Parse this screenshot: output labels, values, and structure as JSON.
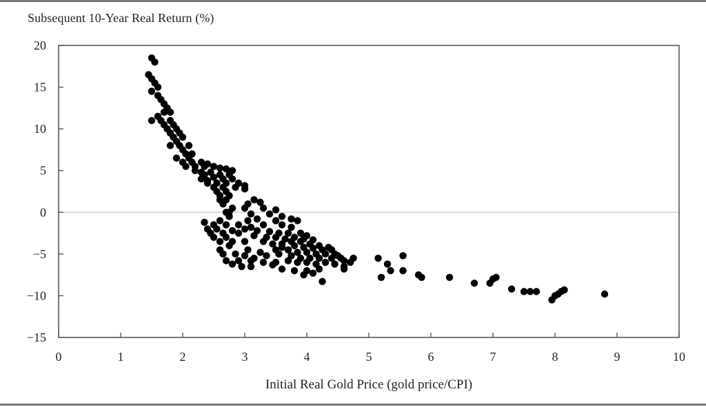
{
  "chart_data": {
    "type": "scatter",
    "title": "",
    "ylabel": "Subsequent 10-Year Real Return (%)",
    "xlabel": "Initial Real Gold Price (gold price/CPI)",
    "xlim": [
      0,
      10
    ],
    "ylim": [
      -15,
      20
    ],
    "xticks": [
      0,
      1,
      2,
      3,
      4,
      5,
      6,
      7,
      8,
      9,
      10
    ],
    "yticks": [
      20,
      15,
      10,
      5,
      0,
      -5,
      -10,
      -15
    ],
    "ytick_labels": [
      "20",
      "15",
      "10",
      "5",
      "0",
      "−5",
      "−10",
      "−15"
    ],
    "reference_line_y": 0,
    "marker_color": "#000000",
    "points": [
      [
        1.5,
        18.5
      ],
      [
        1.55,
        18.0
      ],
      [
        1.45,
        16.5
      ],
      [
        1.5,
        16.0
      ],
      [
        1.55,
        15.5
      ],
      [
        1.6,
        15.0
      ],
      [
        1.5,
        14.5
      ],
      [
        1.6,
        14.0
      ],
      [
        1.65,
        13.5
      ],
      [
        1.7,
        13.0
      ],
      [
        1.75,
        12.5
      ],
      [
        1.8,
        12.0
      ],
      [
        1.7,
        12.0
      ],
      [
        1.6,
        11.5
      ],
      [
        1.5,
        11.0
      ],
      [
        1.65,
        11.0
      ],
      [
        1.8,
        11.0
      ],
      [
        1.7,
        10.5
      ],
      [
        1.85,
        10.5
      ],
      [
        1.75,
        10.0
      ],
      [
        1.9,
        10.0
      ],
      [
        1.8,
        9.5
      ],
      [
        1.95,
        9.5
      ],
      [
        1.85,
        9.0
      ],
      [
        2.0,
        9.0
      ],
      [
        1.9,
        8.5
      ],
      [
        1.8,
        8.0
      ],
      [
        1.95,
        8.0
      ],
      [
        2.1,
        8.0
      ],
      [
        2.0,
        7.5
      ],
      [
        2.15,
        7.0
      ],
      [
        2.05,
        7.0
      ],
      [
        1.9,
        6.5
      ],
      [
        2.1,
        6.5
      ],
      [
        2.0,
        6.0
      ],
      [
        2.15,
        6.0
      ],
      [
        2.3,
        6.0
      ],
      [
        2.2,
        5.5
      ],
      [
        2.05,
        5.5
      ],
      [
        2.35,
        5.5
      ],
      [
        2.5,
        5.5
      ],
      [
        2.4,
        5.8
      ],
      [
        2.6,
        5.3
      ],
      [
        2.7,
        5.2
      ],
      [
        2.8,
        5.0
      ],
      [
        2.2,
        5.0
      ],
      [
        2.3,
        4.8
      ],
      [
        2.45,
        4.8
      ],
      [
        2.6,
        4.5
      ],
      [
        2.75,
        4.5
      ],
      [
        2.35,
        4.5
      ],
      [
        2.5,
        4.2
      ],
      [
        2.65,
        4.0
      ],
      [
        2.3,
        4.0
      ],
      [
        2.8,
        4.0
      ],
      [
        2.4,
        3.8
      ],
      [
        2.55,
        3.5
      ],
      [
        2.7,
        3.5
      ],
      [
        2.9,
        3.5
      ],
      [
        3.0,
        3.2
      ],
      [
        2.4,
        3.5
      ],
      [
        2.5,
        3.0
      ],
      [
        2.65,
        3.0
      ],
      [
        2.85,
        3.0
      ],
      [
        3.0,
        2.8
      ],
      [
        2.55,
        2.5
      ],
      [
        2.7,
        2.5
      ],
      [
        2.6,
        2.0
      ],
      [
        2.75,
        2.0
      ],
      [
        2.6,
        1.5
      ],
      [
        2.7,
        1.5
      ],
      [
        3.15,
        1.5
      ],
      [
        3.25,
        1.2
      ],
      [
        3.05,
        1.0
      ],
      [
        2.65,
        1.0
      ],
      [
        2.8,
        0.5
      ],
      [
        3.0,
        0.5
      ],
      [
        3.3,
        0.5
      ],
      [
        3.5,
        0.3
      ],
      [
        2.7,
        0.0
      ],
      [
        2.75,
        0.0
      ],
      [
        3.1,
        -0.2
      ],
      [
        3.4,
        -0.2
      ],
      [
        3.6,
        -0.5
      ],
      [
        3.75,
        -0.8
      ],
      [
        3.85,
        -1.0
      ],
      [
        2.75,
        -0.5
      ],
      [
        3.2,
        -0.8
      ],
      [
        3.05,
        -1.0
      ],
      [
        3.5,
        -1.0
      ],
      [
        2.6,
        -1.0
      ],
      [
        2.35,
        -1.2
      ],
      [
        2.5,
        -1.5
      ],
      [
        2.7,
        -1.5
      ],
      [
        2.9,
        -1.5
      ],
      [
        3.1,
        -1.8
      ],
      [
        3.3,
        -1.5
      ],
      [
        3.6,
        -1.5
      ],
      [
        3.75,
        -1.8
      ],
      [
        2.4,
        -2.0
      ],
      [
        2.55,
        -2.0
      ],
      [
        2.8,
        -2.2
      ],
      [
        3.0,
        -2.0
      ],
      [
        3.2,
        -2.2
      ],
      [
        3.4,
        -2.3
      ],
      [
        3.55,
        -2.5
      ],
      [
        3.7,
        -2.5
      ],
      [
        3.9,
        -2.5
      ],
      [
        4.0,
        -2.8
      ],
      [
        2.45,
        -2.5
      ],
      [
        2.65,
        -2.5
      ],
      [
        2.9,
        -2.5
      ],
      [
        3.15,
        -2.8
      ],
      [
        3.35,
        -3.0
      ],
      [
        3.5,
        -3.0
      ],
      [
        3.65,
        -3.2
      ],
      [
        3.8,
        -3.0
      ],
      [
        3.95,
        -3.2
      ],
      [
        4.1,
        -3.3
      ],
      [
        2.5,
        -3.0
      ],
      [
        2.7,
        -3.0
      ],
      [
        2.6,
        -3.5
      ],
      [
        2.8,
        -3.5
      ],
      [
        3.0,
        -3.5
      ],
      [
        3.3,
        -3.5
      ],
      [
        3.45,
        -3.8
      ],
      [
        3.6,
        -3.8
      ],
      [
        3.75,
        -3.5
      ],
      [
        3.9,
        -3.5
      ],
      [
        4.05,
        -3.8
      ],
      [
        4.2,
        -4.0
      ],
      [
        4.35,
        -4.2
      ],
      [
        2.75,
        -4.0
      ],
      [
        3.6,
        -4.2
      ],
      [
        3.8,
        -4.0
      ],
      [
        3.95,
        -4.2
      ],
      [
        4.1,
        -4.3
      ],
      [
        4.25,
        -4.5
      ],
      [
        4.4,
        -4.5
      ],
      [
        2.6,
        -4.5
      ],
      [
        3.05,
        -4.5
      ],
      [
        3.25,
        -4.8
      ],
      [
        3.5,
        -4.5
      ],
      [
        3.7,
        -4.5
      ],
      [
        3.85,
        -4.8
      ],
      [
        4.0,
        -4.8
      ],
      [
        4.15,
        -5.0
      ],
      [
        4.3,
        -5.0
      ],
      [
        4.5,
        -5.2
      ],
      [
        2.65,
        -5.0
      ],
      [
        2.85,
        -5.0
      ],
      [
        3.0,
        -5.2
      ],
      [
        3.15,
        -5.5
      ],
      [
        3.35,
        -5.2
      ],
      [
        3.55,
        -5.0
      ],
      [
        3.75,
        -5.2
      ],
      [
        3.9,
        -5.5
      ],
      [
        4.05,
        -5.5
      ],
      [
        4.2,
        -5.5
      ],
      [
        4.4,
        -5.5
      ],
      [
        4.6,
        -5.8
      ],
      [
        4.75,
        -5.5
      ],
      [
        2.7,
        -5.8
      ],
      [
        2.9,
        -5.8
      ],
      [
        3.1,
        -5.8
      ],
      [
        3.3,
        -6.0
      ],
      [
        3.5,
        -6.0
      ],
      [
        3.7,
        -5.8
      ],
      [
        3.85,
        -6.0
      ],
      [
        4.0,
        -6.0
      ],
      [
        4.15,
        -6.2
      ],
      [
        4.3,
        -6.0
      ],
      [
        4.45,
        -6.2
      ],
      [
        4.6,
        -6.5
      ],
      [
        2.8,
        -6.2
      ],
      [
        2.95,
        -6.5
      ],
      [
        3.1,
        -6.5
      ],
      [
        3.45,
        -6.3
      ],
      [
        3.6,
        -6.8
      ],
      [
        3.8,
        -7.0
      ],
      [
        4.0,
        -7.0
      ],
      [
        4.2,
        -6.8
      ],
      [
        4.6,
        -6.8
      ],
      [
        3.95,
        -7.5
      ],
      [
        4.1,
        -7.3
      ],
      [
        4.25,
        -8.3
      ],
      [
        4.45,
        -5.0
      ],
      [
        4.55,
        -5.5
      ],
      [
        4.7,
        -6.0
      ],
      [
        5.15,
        -5.5
      ],
      [
        5.3,
        -6.2
      ],
      [
        5.55,
        -5.2
      ],
      [
        5.35,
        -7.0
      ],
      [
        5.55,
        -7.0
      ],
      [
        5.2,
        -7.8
      ],
      [
        5.8,
        -7.5
      ],
      [
        5.85,
        -7.8
      ],
      [
        6.3,
        -7.8
      ],
      [
        6.7,
        -8.5
      ],
      [
        7.0,
        -8.0
      ],
      [
        7.05,
        -7.8
      ],
      [
        6.95,
        -8.5
      ],
      [
        7.3,
        -9.2
      ],
      [
        7.5,
        -9.5
      ],
      [
        7.6,
        -9.5
      ],
      [
        7.7,
        -9.5
      ],
      [
        7.95,
        -10.5
      ],
      [
        8.0,
        -10.0
      ],
      [
        8.05,
        -9.8
      ],
      [
        8.1,
        -9.5
      ],
      [
        8.15,
        -9.3
      ],
      [
        8.8,
        -9.8
      ]
    ]
  }
}
